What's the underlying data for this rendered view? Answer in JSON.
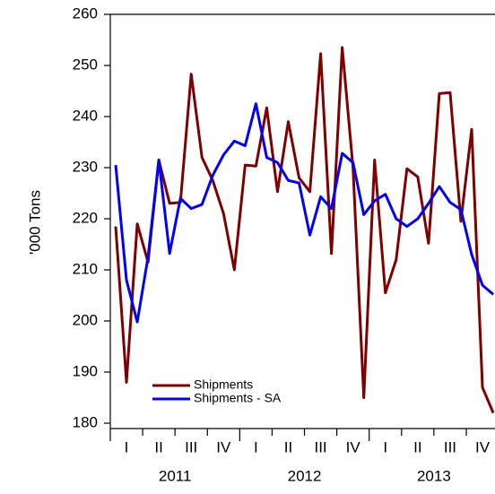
{
  "chart_data": {
    "type": "line",
    "y_label": "'000 Tons",
    "categories": [
      null,
      "I",
      null,
      null,
      "II",
      null,
      null,
      "III",
      null,
      null,
      "IV",
      null,
      null,
      "I",
      null,
      null,
      "II",
      null,
      null,
      "III",
      null,
      null,
      "IV",
      null,
      null,
      "I",
      null,
      null,
      "II",
      null,
      null,
      "III",
      null,
      null,
      "IV",
      null
    ],
    "year_labels": [
      "2011",
      "2012",
      "2013"
    ],
    "series": [
      {
        "name": "Shipments",
        "color": "#800000",
        "values": [
          218.5,
          188,
          219,
          211.5,
          231.5,
          223,
          223.2,
          248.3,
          232,
          227.5,
          221,
          210,
          230.5,
          230.3,
          241.7,
          225.3,
          239,
          228,
          225.3,
          252.3,
          213.2,
          253.5,
          230,
          185,
          231.5,
          205.5,
          212,
          229.8,
          228.2,
          215.2,
          244.5,
          244.7,
          219.5,
          237.5,
          187,
          182
        ]
      },
      {
        "name": "Shipments - SA",
        "color": "#0000ff",
        "values": [
          230.5,
          208,
          199.8,
          212.5,
          231.5,
          213.2,
          224,
          222,
          222.8,
          228.5,
          232.5,
          235.2,
          234.3,
          242.5,
          232,
          231,
          227.5,
          227,
          216.8,
          224.3,
          222,
          232.8,
          231,
          220.8,
          223.5,
          224.8,
          220,
          218.5,
          220,
          223,
          226.3,
          223.2,
          221.8,
          213,
          207,
          205.2
        ]
      }
    ],
    "ylim": [
      180,
      260
    ],
    "yticks": [
      180,
      190,
      200,
      210,
      220,
      230,
      240,
      250,
      260
    ],
    "legend": "lower-left"
  }
}
